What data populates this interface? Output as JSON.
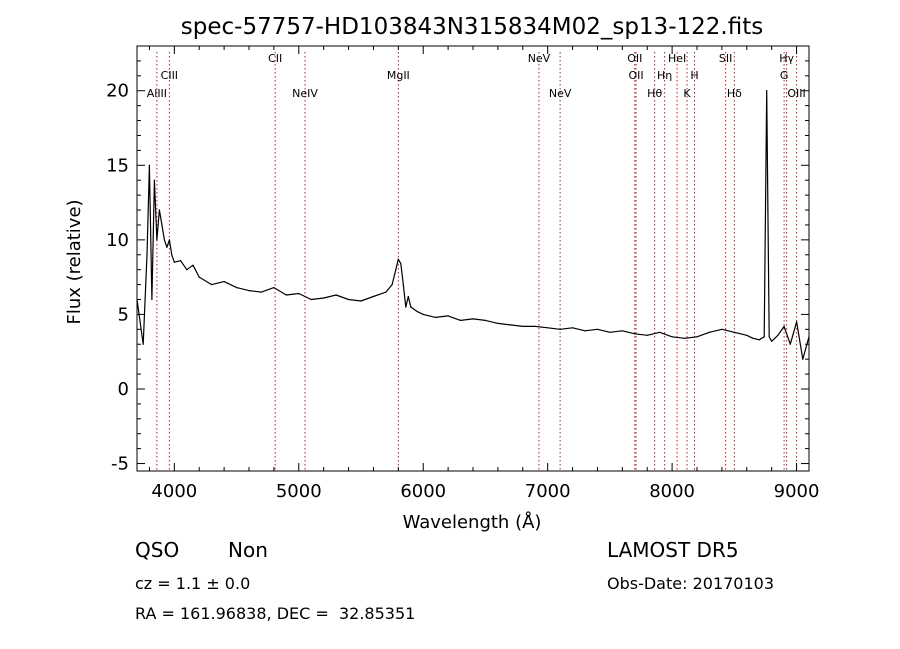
{
  "chart_data": {
    "type": "line",
    "title": "spec-57757-HD103843N315834M02_sp13-122.fits",
    "xlabel": "Wavelength (Å)",
    "ylabel": "Flux (relative)",
    "xlim": [
      3700,
      9100
    ],
    "ylim": [
      -5.5,
      23
    ],
    "xticks": [
      4000,
      5000,
      6000,
      7000,
      8000,
      9000
    ],
    "yticks": [
      -5,
      0,
      5,
      10,
      15,
      20
    ],
    "grid": false,
    "series": [
      {
        "x": [
          3700,
          3750,
          3780,
          3800,
          3820,
          3840,
          3860,
          3880,
          3900,
          3920,
          3940,
          3960,
          3980,
          4000,
          4050,
          4100,
          4150,
          4200,
          4300,
          4400,
          4500,
          4600,
          4700,
          4800,
          4900,
          5000,
          5100,
          5200,
          5300,
          5400,
          5500,
          5600,
          5700,
          5750,
          5780,
          5800,
          5820,
          5840,
          5860,
          5880,
          5900,
          5950,
          6000,
          6100,
          6200,
          6300,
          6400,
          6500,
          6600,
          6700,
          6800,
          6900,
          7000,
          7100,
          7200,
          7300,
          7400,
          7500,
          7600,
          7700,
          7800,
          7900,
          8000,
          8100,
          8200,
          8300,
          8400,
          8500,
          8600,
          8650,
          8700,
          8740,
          8760,
          8770,
          8780,
          8800,
          8850,
          8900,
          8950,
          9000,
          9050,
          9100
        ],
        "y": [
          6,
          3,
          9,
          15,
          6,
          14,
          10,
          12,
          11,
          10,
          9.5,
          10,
          9,
          8.5,
          8.6,
          8,
          8.3,
          7.5,
          7,
          7.2,
          6.8,
          6.6,
          6.5,
          6.8,
          6.3,
          6.4,
          6,
          6.1,
          6.3,
          6,
          5.9,
          6.2,
          6.5,
          7,
          8,
          8.7,
          8.4,
          7,
          5.5,
          6.2,
          5.5,
          5.2,
          5,
          4.8,
          4.9,
          4.6,
          4.7,
          4.6,
          4.4,
          4.3,
          4.2,
          4.2,
          4.1,
          4,
          4.1,
          3.9,
          4,
          3.8,
          3.9,
          3.7,
          3.6,
          3.8,
          3.5,
          3.4,
          3.5,
          3.8,
          4,
          3.8,
          3.6,
          3.4,
          3.3,
          3.5,
          20,
          12,
          3.5,
          3.2,
          3.6,
          4.2,
          3,
          4.5,
          2,
          3.5
        ]
      }
    ],
    "line_markers": [
      {
        "label": "AlIII",
        "x": 3860,
        "row": 3
      },
      {
        "label": "CIII",
        "x": 3960,
        "row": 2
      },
      {
        "label": "CII",
        "x": 4810,
        "row": 1
      },
      {
        "label": "NeIV",
        "x": 5050,
        "row": 3
      },
      {
        "label": "MgII",
        "x": 5800,
        "row": 2
      },
      {
        "label": "NeV",
        "x": 6930,
        "row": 1
      },
      {
        "label": "NeV",
        "x": 7100,
        "row": 3
      },
      {
        "label": "OII",
        "x": 7700,
        "row": 1
      },
      {
        "label": "OII",
        "x": 7710,
        "row": 2
      },
      {
        "label": "Hθ",
        "x": 7860,
        "row": 3
      },
      {
        "label": "Hη",
        "x": 7940,
        "row": 2
      },
      {
        "label": "HeI",
        "x": 8040,
        "row": 1
      },
      {
        "label": "H",
        "x": 8180,
        "row": 2
      },
      {
        "label": "K",
        "x": 8120,
        "row": 3
      },
      {
        "label": "SII",
        "x": 8430,
        "row": 1
      },
      {
        "label": "Hδ",
        "x": 8500,
        "row": 3
      },
      {
        "label": "Hγ",
        "x": 8920,
        "row": 1
      },
      {
        "label": "G",
        "x": 8900,
        "row": 2
      },
      {
        "label": "OIII",
        "x": 9000,
        "row": 3
      }
    ]
  },
  "info": {
    "class": "QSO",
    "subclass": "Non",
    "survey": "LAMOST DR5",
    "cz": "cz = 1.1 ± 0.0",
    "obs_date": "Obs-Date: 20170103",
    "coords": "RA = 161.96838, DEC =  32.85351"
  },
  "colors": {
    "spectrum": "#000000",
    "marker": "#b22222",
    "axis": "#000000"
  }
}
